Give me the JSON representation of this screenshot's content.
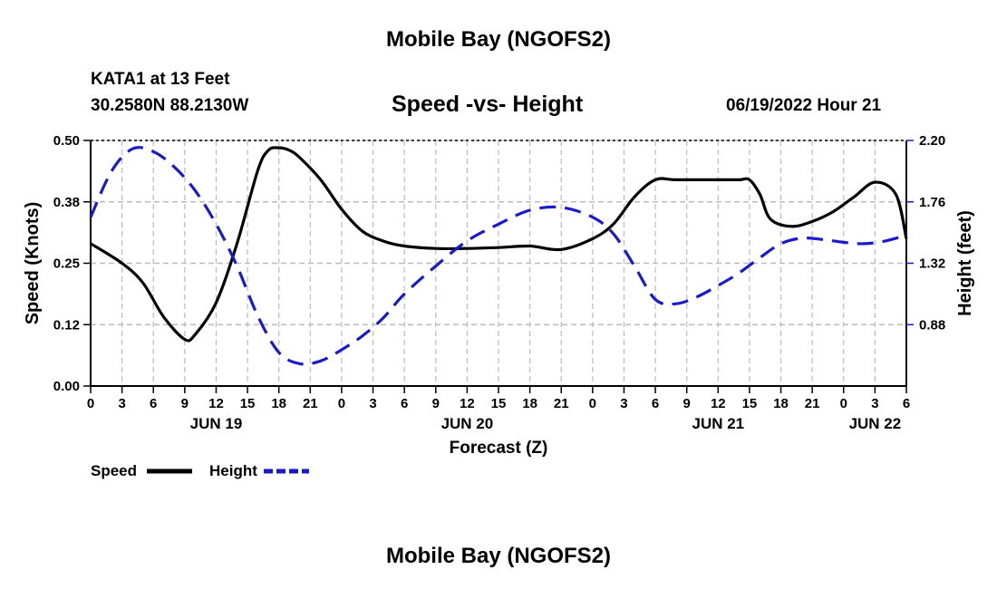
{
  "header": {
    "title": "Mobile Bay (NGOFS2)",
    "station": "KATA1 at 13 Feet",
    "coordinates": "30.2580N  88.2130W",
    "subtitle": "Speed -vs- Height",
    "datestamp": "06/19/2022 Hour 21"
  },
  "footer": {
    "title": "Mobile Bay (NGOFS2)"
  },
  "legend": {
    "speed_label": "Speed",
    "height_label": "Height"
  },
  "colors": {
    "speed": "#000000",
    "height": "#1a1acc",
    "grid": "#bbbbbb"
  },
  "chart_data": {
    "type": "line",
    "xlabel": "Forecast (Z)",
    "ylabel": "Speed (Knots)",
    "y2label": "Height (feet)",
    "x_unit": "hours from 00Z Jun 19",
    "xlim": [
      0,
      78
    ],
    "ylim": [
      0,
      0.5
    ],
    "y2lim": [
      0.44,
      2.2
    ],
    "x_ticks": [
      0,
      3,
      6,
      9,
      12,
      15,
      18,
      21,
      24,
      27,
      30,
      33,
      36,
      39,
      42,
      45,
      48,
      51,
      54,
      57,
      60,
      63,
      66,
      69,
      72,
      75,
      78
    ],
    "x_tick_labels": [
      "0",
      "3",
      "6",
      "9",
      "12",
      "15",
      "18",
      "21",
      "0",
      "3",
      "6",
      "9",
      "12",
      "15",
      "18",
      "21",
      "0",
      "3",
      "6",
      "9",
      "12",
      "15",
      "18",
      "21",
      "0",
      "3",
      "6"
    ],
    "y_ticks": [
      0.0,
      0.125,
      0.25,
      0.375,
      0.5
    ],
    "y_tick_labels": [
      "0.00",
      "0.12",
      "0.25",
      "0.38",
      "0.50"
    ],
    "y2_ticks": [
      0.88,
      1.32,
      1.76,
      2.2
    ],
    "y2_tick_labels": [
      "0.88",
      "1.32",
      "1.76",
      "2.20"
    ],
    "date_labels": [
      {
        "x": 12,
        "label": "JUN 19"
      },
      {
        "x": 36,
        "label": "JUN 20"
      },
      {
        "x": 60,
        "label": "JUN 21"
      },
      {
        "x": 75,
        "label": "JUN 22"
      }
    ],
    "series": [
      {
        "name": "Speed",
        "axis": "left",
        "style": "solid",
        "x": [
          0,
          3,
          5,
          7,
          9,
          10,
          12,
          14,
          16,
          17,
          18,
          19,
          20,
          22,
          24,
          26,
          28,
          30,
          33,
          36,
          39,
          42,
          45,
          48,
          50,
          52,
          54,
          56,
          60,
          62,
          63,
          64,
          65,
          67,
          69,
          71,
          73,
          75,
          77,
          78
        ],
        "y": [
          0.29,
          0.25,
          0.21,
          0.14,
          0.095,
          0.105,
          0.17,
          0.29,
          0.44,
          0.48,
          0.485,
          0.48,
          0.465,
          0.42,
          0.36,
          0.315,
          0.295,
          0.285,
          0.28,
          0.28,
          0.282,
          0.285,
          0.278,
          0.3,
          0.33,
          0.385,
          0.42,
          0.42,
          0.42,
          0.42,
          0.42,
          0.39,
          0.34,
          0.325,
          0.335,
          0.355,
          0.385,
          0.415,
          0.39,
          0.3
        ]
      },
      {
        "name": "Height",
        "axis": "right",
        "style": "dashed",
        "x": [
          0,
          2,
          4,
          6,
          8,
          10,
          12,
          14,
          16,
          18,
          20,
          22,
          24,
          26,
          28,
          30,
          33,
          36,
          39,
          42,
          45,
          48,
          50,
          52,
          54,
          56,
          58,
          60,
          62,
          64,
          66,
          68,
          70,
          72,
          74,
          76,
          78
        ],
        "y": [
          1.65,
          1.98,
          2.14,
          2.12,
          2.01,
          1.84,
          1.6,
          1.3,
          0.94,
          0.68,
          0.6,
          0.62,
          0.7,
          0.8,
          0.93,
          1.1,
          1.3,
          1.48,
          1.6,
          1.7,
          1.72,
          1.65,
          1.53,
          1.3,
          1.06,
          1.03,
          1.08,
          1.16,
          1.25,
          1.36,
          1.46,
          1.5,
          1.49,
          1.47,
          1.46,
          1.48,
          1.52
        ]
      }
    ]
  }
}
